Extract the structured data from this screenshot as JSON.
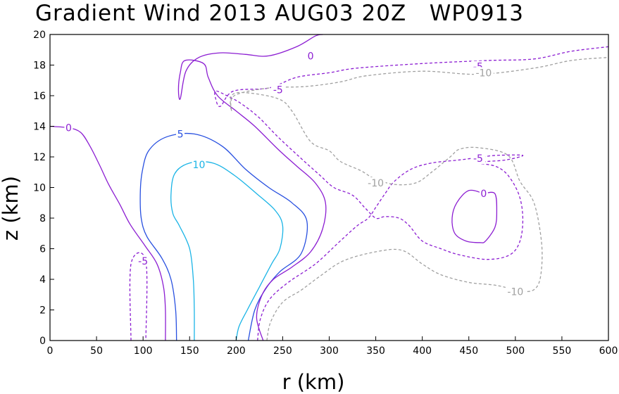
{
  "chart_data": {
    "type": "contour",
    "title": "Gradient Wind 2013 AUG03 20Z   WP0913",
    "xlabel": "r (km)",
    "ylabel": "z (km)",
    "xlim": [
      0,
      600
    ],
    "ylim": [
      0,
      20
    ],
    "xticks": [
      0,
      50,
      100,
      150,
      200,
      250,
      300,
      350,
      400,
      450,
      500,
      550,
      600
    ],
    "yticks": [
      0,
      2,
      4,
      6,
      8,
      10,
      12,
      14,
      16,
      18,
      20
    ],
    "levels": [
      {
        "value": 10,
        "color": "#1ab4e6",
        "style": "solid",
        "lines": [
          {
            "points": [
              [
                155,
                0
              ],
              [
                155,
                2
              ],
              [
                154,
                4
              ],
              [
                150,
                6
              ],
              [
                139,
                7.5
              ],
              [
                132,
                8.3
              ],
              [
                130,
                9.5
              ],
              [
                134,
                10.9
              ],
              [
                150,
                11.6
              ],
              [
                175,
                11.6
              ],
              [
                198,
                10.8
              ],
              [
                222,
                9.6
              ],
              [
                242,
                8.5
              ],
              [
                250,
                7.5
              ],
              [
                247,
                6
              ],
              [
                238,
                5
              ],
              [
                225,
                3.5
              ],
              [
                212,
                2
              ],
              [
                203,
                0.9
              ],
              [
                200,
                0
              ]
            ]
          }
        ],
        "labels": [
          {
            "text": "10",
            "at": [
              160,
              11.5
            ]
          }
        ]
      },
      {
        "value": 5,
        "color": "#2850e0",
        "style": "solid",
        "lines": [
          {
            "points": [
              [
                136,
                0
              ],
              [
                135,
                2
              ],
              [
                130,
                4
              ],
              [
                120,
                5.4
              ],
              [
                104,
                6.8
              ],
              [
                98,
                8
              ],
              [
                97,
                9.6
              ],
              [
                99,
                11
              ],
              [
                106,
                12.4
              ],
              [
                125,
                13.3
              ],
              [
                155,
                13.5
              ],
              [
                185,
                12.7
              ],
              [
                210,
                11.2
              ],
              [
                235,
                10
              ],
              [
                260,
                9
              ],
              [
                276,
                7.8
              ],
              [
                270,
                5.7
              ],
              [
                247,
                4.5
              ],
              [
                232,
                3.4
              ],
              [
                220,
                2
              ],
              [
                213,
                0
              ]
            ]
          }
        ],
        "labels": [
          {
            "text": "5",
            "at": [
              140,
              13.5
            ]
          }
        ]
      },
      {
        "value": 0,
        "color": "#8c1ed2",
        "style": "solid",
        "lines": [
          {
            "points": [
              [
                0,
                14
              ],
              [
                20,
                13.9
              ],
              [
                33,
                13.6
              ],
              [
                43,
                12.7
              ],
              [
                53,
                11.5
              ],
              [
                63,
                10.2
              ],
              [
                75,
                8.9
              ],
              [
                86,
                7.6
              ],
              [
                102,
                6.2
              ],
              [
                115,
                5
              ],
              [
                122,
                3.5
              ],
              [
                124,
                2
              ],
              [
                124,
                0
              ]
            ]
          },
          {
            "points": [
              [
                229,
                0
              ],
              [
                222,
                1.5
              ],
              [
                228,
                3
              ],
              [
                240,
                4
              ],
              [
                260,
                4.8
              ],
              [
                280,
                5.8
              ],
              [
                293,
                7.3
              ],
              [
                296,
                9
              ],
              [
                285,
                10.3
              ],
              [
                265,
                11.4
              ],
              [
                245,
                12.5
              ],
              [
                220,
                14
              ],
              [
                200,
                15
              ],
              [
                180,
                16
              ],
              [
                170,
                17.2
              ],
              [
                165,
                18.1
              ],
              [
                145,
                18.3
              ],
              [
                140,
                17.5
              ],
              [
                138,
                16.4
              ],
              [
                140,
                15.8
              ],
              [
                146,
                17.6
              ],
              [
                160,
                18.5
              ],
              [
                183,
                18.8
              ],
              [
                210,
                18.7
              ],
              [
                235,
                18.6
              ],
              [
                265,
                19.2
              ],
              [
                285,
                19.9
              ],
              [
                293,
                20
              ]
            ]
          },
          {
            "points": [
              [
                466,
                9.6
              ],
              [
                450,
                9.8
              ],
              [
                437,
                9
              ],
              [
                432,
                8
              ],
              [
                435,
                7
              ],
              [
                447,
                6.5
              ],
              [
                462,
                6.4
              ],
              [
                468,
                6.5
              ],
              [
                478,
                7.4
              ],
              [
                480,
                8.4
              ],
              [
                478,
                9.6
              ],
              [
                466,
                9.6
              ]
            ]
          }
        ],
        "labels": [
          {
            "text": "0",
            "at": [
              20,
              13.9
            ]
          },
          {
            "text": "0",
            "at": [
              280,
              18.6
            ]
          },
          {
            "text": "0",
            "at": [
              466,
              9.6
            ]
          }
        ]
      },
      {
        "value": -5,
        "color": "#8c1ed2",
        "style": "dashed",
        "lines": [
          {
            "points": [
              [
                87,
                0
              ],
              [
                87,
                5
              ],
              [
                103,
                5.2
              ],
              [
                103,
                0
              ]
            ]
          },
          {
            "points": [
              [
                223,
                0
              ],
              [
                226,
                1.4
              ],
              [
                236,
                2.7
              ],
              [
                256,
                3.8
              ],
              [
                285,
                5
              ],
              [
                310,
                6.4
              ],
              [
                330,
                7.5
              ],
              [
                342,
                8
              ],
              [
                350,
                8.7
              ],
              [
                360,
                9.6
              ],
              [
                370,
                10.4
              ],
              [
                388,
                11.2
              ],
              [
                410,
                11.6
              ],
              [
                440,
                11.8
              ],
              [
                465,
                12
              ],
              [
                480,
                12.1
              ],
              [
                508,
                12.1
              ],
              [
                490,
                11.8
              ],
              [
                470,
                11.7
              ],
              [
                458,
                11.6
              ],
              [
                478,
                11.4
              ],
              [
                492,
                10.8
              ],
              [
                504,
                9.5
              ],
              [
                508,
                8
              ],
              [
                505,
                6.5
              ],
              [
                494,
                5.6
              ],
              [
                470,
                5.3
              ],
              [
                440,
                5.6
              ],
              [
                420,
                6
              ],
              [
                400,
                6.5
              ],
              [
                386,
                7.5
              ],
              [
                375,
                8
              ],
              [
                360,
                8.1
              ],
              [
                350,
                8
              ],
              [
                338,
                8.7
              ],
              [
                325,
                9.5
              ],
              [
                305,
                10
              ],
              [
                290,
                10.8
              ],
              [
                268,
                12
              ],
              [
                245,
                13.3
              ],
              [
                224,
                14.6
              ],
              [
                205,
                15.5
              ],
              [
                190,
                16
              ],
              [
                178,
                16.3
              ],
              [
                178,
                15.8
              ],
              [
                183,
                15.3
              ],
              [
                197,
                16.3
              ],
              [
                235,
                16.5
              ],
              [
                265,
                17.2
              ],
              [
                300,
                17.5
              ],
              [
                330,
                17.8
              ],
              [
                400,
                18.1
              ],
              [
                470,
                18.3
              ],
              [
                520,
                18.4
              ],
              [
                560,
                18.9
              ],
              [
                600,
                19.2
              ]
            ]
          }
        ],
        "labels": [
          {
            "text": "-5",
            "at": [
              100,
              5.2
            ]
          },
          {
            "text": "-5",
            "at": [
              245,
              16.4
            ]
          },
          {
            "text": "-5",
            "at": [
              460,
              17.9
            ]
          },
          {
            "text": "-5",
            "at": [
              460,
              11.9
            ]
          }
        ]
      },
      {
        "value": -10,
        "color": "#a0a0a0",
        "style": "dashed",
        "lines": [
          {
            "points": [
              [
                233,
                0
              ],
              [
                237,
                1.2
              ],
              [
                250,
                2.5
              ],
              [
                270,
                3.3
              ],
              [
                290,
                4.2
              ],
              [
                315,
                5.2
              ],
              [
                350,
                5.8
              ],
              [
                378,
                5.9
              ],
              [
                400,
                5
              ],
              [
                420,
                4.3
              ],
              [
                450,
                3.8
              ],
              [
                480,
                3.6
              ],
              [
                510,
                3.2
              ],
              [
                523,
                3.5
              ],
              [
                528,
                4.6
              ],
              [
                528,
                6.5
              ],
              [
                520,
                9
              ],
              [
                505,
                10.4
              ],
              [
                492,
                12.1
              ],
              [
                460,
                12.6
              ],
              [
                440,
                12.5
              ],
              [
                430,
                12
              ],
              [
                410,
                11
              ],
              [
                393,
                10.3
              ],
              [
                370,
                10.2
              ],
              [
                348,
                10.6
              ],
              [
                334,
                11.1
              ],
              [
                312,
                11.7
              ],
              [
                300,
                12.4
              ],
              [
                280,
                13
              ],
              [
                260,
                15
              ],
              [
                245,
                15.8
              ],
              [
                210,
                16.2
              ],
              [
                195,
                16
              ],
              [
                195,
                15
              ],
              [
                198,
                16
              ],
              [
                235,
                16.5
              ],
              [
                275,
                16.6
              ],
              [
                312,
                16.9
              ],
              [
                340,
                17.3
              ],
              [
                400,
                17.6
              ],
              [
                460,
                17.4
              ],
              [
                520,
                17.8
              ],
              [
                560,
                18.3
              ],
              [
                600,
                18.5
              ]
            ]
          }
        ],
        "labels": [
          {
            "text": "-10",
            "at": [
              466,
              17.5
            ]
          },
          {
            "text": "-10",
            "at": [
              350,
              10.3
            ]
          },
          {
            "text": "-10",
            "at": [
              500,
              3.2
            ]
          }
        ]
      }
    ]
  }
}
